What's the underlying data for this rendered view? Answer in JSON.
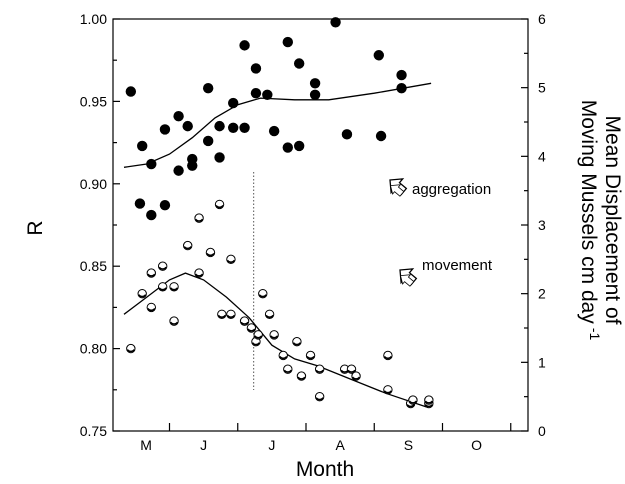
{
  "chart_data": {
    "type": "scatter",
    "xlabel": "Month",
    "ylabel_left": "R",
    "ylabel_right_line1": "Mean Displacement of",
    "ylabel_right_line2": "Moving Mussels cm day",
    "ylabel_right_sup": "-1",
    "months": [
      "M",
      "J",
      "J",
      "A",
      "S",
      "O"
    ],
    "x_range_days": [
      0,
      180
    ],
    "month_boundaries": [
      20,
      50,
      80,
      110,
      140,
      170
    ],
    "left_ylim": [
      0.75,
      1.0
    ],
    "left_yticks": [
      "0.75",
      "0.80",
      "0.85",
      "0.90",
      "0.95",
      "1.00"
    ],
    "right_ylim": [
      0,
      6
    ],
    "right_yticks": [
      "0",
      "1",
      "2",
      "3",
      "4",
      "5",
      "6"
    ],
    "reference_day": 57,
    "series": [
      {
        "name": "aggregation",
        "axis": "left",
        "marker": "filled",
        "points": [
          [
            3,
            0.956
          ],
          [
            7,
            0.888
          ],
          [
            8,
            0.923
          ],
          [
            12,
            0.912
          ],
          [
            12,
            0.881
          ],
          [
            18,
            0.887
          ],
          [
            18,
            0.933
          ],
          [
            24,
            0.941
          ],
          [
            24,
            0.908
          ],
          [
            28,
            0.935
          ],
          [
            30,
            0.911
          ],
          [
            30,
            0.915
          ],
          [
            37,
            0.926
          ],
          [
            37,
            0.958
          ],
          [
            42,
            0.935
          ],
          [
            42,
            0.916
          ],
          [
            48,
            0.949
          ],
          [
            48,
            0.934
          ],
          [
            53,
            0.984
          ],
          [
            53,
            0.934
          ],
          [
            58,
            0.97
          ],
          [
            58,
            0.955
          ],
          [
            63,
            0.954
          ],
          [
            66,
            0.932
          ],
          [
            72,
            0.986
          ],
          [
            72,
            0.922
          ],
          [
            77,
            0.973
          ],
          [
            77,
            0.923
          ],
          [
            84,
            0.961
          ],
          [
            84,
            0.954
          ],
          [
            93,
            0.998
          ],
          [
            98,
            0.93
          ],
          [
            112,
            0.978
          ],
          [
            113,
            0.929
          ],
          [
            122,
            0.966
          ],
          [
            122,
            0.958
          ]
        ]
      },
      {
        "name": "movement",
        "axis": "right",
        "marker": "open",
        "points": [
          [
            3,
            1.2
          ],
          [
            8,
            2.0
          ],
          [
            12,
            2.3
          ],
          [
            12,
            1.8
          ],
          [
            17,
            2.4
          ],
          [
            17,
            2.1
          ],
          [
            22,
            2.1
          ],
          [
            22,
            1.6
          ],
          [
            28,
            2.7
          ],
          [
            33,
            2.3
          ],
          [
            33,
            3.1
          ],
          [
            38,
            2.6
          ],
          [
            42,
            3.3
          ],
          [
            43,
            1.7
          ],
          [
            47,
            1.7
          ],
          [
            47,
            2.5
          ],
          [
            53,
            1.6
          ],
          [
            56,
            1.5
          ],
          [
            58,
            1.3
          ],
          [
            59,
            1.4
          ],
          [
            61,
            2.0
          ],
          [
            64,
            1.7
          ],
          [
            66,
            1.4
          ],
          [
            70,
            1.1
          ],
          [
            72,
            0.9
          ],
          [
            76,
            1.3
          ],
          [
            78,
            0.8
          ],
          [
            82,
            1.1
          ],
          [
            86,
            0.9
          ],
          [
            86,
            0.5
          ],
          [
            97,
            0.9
          ],
          [
            100,
            0.9
          ],
          [
            102,
            0.8
          ],
          [
            116,
            1.1
          ],
          [
            116,
            0.6
          ],
          [
            126,
            0.4
          ],
          [
            127,
            0.45
          ],
          [
            134,
            0.4
          ],
          [
            134,
            0.45
          ]
        ]
      }
    ],
    "fit_lines": [
      {
        "series": "aggregation",
        "axis": "left",
        "points": [
          [
            0,
            0.91
          ],
          [
            10,
            0.912
          ],
          [
            20,
            0.918
          ],
          [
            30,
            0.928
          ],
          [
            40,
            0.94
          ],
          [
            50,
            0.948
          ],
          [
            60,
            0.952
          ],
          [
            75,
            0.951
          ],
          [
            90,
            0.951
          ],
          [
            110,
            0.955
          ],
          [
            135,
            0.961
          ]
        ]
      },
      {
        "series": "movement",
        "axis": "right",
        "points": [
          [
            0,
            1.7
          ],
          [
            10,
            1.95
          ],
          [
            20,
            2.2
          ],
          [
            27,
            2.3
          ],
          [
            35,
            2.2
          ],
          [
            45,
            1.95
          ],
          [
            55,
            1.65
          ],
          [
            65,
            1.25
          ],
          [
            75,
            1.05
          ],
          [
            85,
            0.95
          ],
          [
            100,
            0.75
          ],
          [
            115,
            0.55
          ],
          [
            133,
            0.35
          ]
        ]
      }
    ]
  }
}
